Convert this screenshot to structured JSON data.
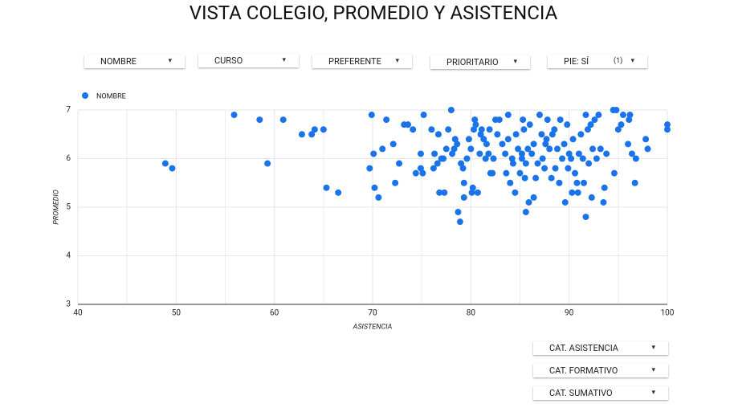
{
  "header": {
    "title": "VISTA COLEGIO, PROMEDIO Y ASISTENCIA"
  },
  "filters": [
    "NOMBRE",
    "CURSO",
    "PREFERENTE",
    "PRIORITARIO",
    {
      "label": "PIE: SÍ",
      "count": "(1)"
    }
  ],
  "bottom_filters": [
    "CAT. ASISTENCIA",
    "CAT. FORMATIVO",
    "CAT. SUMATIVO"
  ],
  "chart_data": {
    "type": "scatter",
    "x_label": "ASISTENCIA",
    "y_label": "PROMEDIO",
    "xlim": [
      40,
      100
    ],
    "xticks": [
      40,
      50,
      60,
      70,
      80,
      90,
      100
    ],
    "ylim": [
      3,
      7
    ],
    "yticks": [
      3,
      4,
      5,
      6,
      7
    ],
    "grid": true,
    "legend": "top-left",
    "x": [
      48.9,
      49.6,
      55.9,
      58.5,
      59.3,
      60.9,
      62.8,
      63.8,
      64.1,
      65.0,
      65.3,
      66.5,
      69.7,
      69.9,
      70.1,
      70.2,
      70.6,
      71.0,
      71.4,
      72.1,
      72.3,
      72.7,
      73.2,
      73.6,
      74.1,
      74.4,
      74.9,
      74.9,
      75.1,
      75.2,
      76.0,
      76.2,
      76.3,
      76.6,
      76.7,
      76.8,
      77.0,
      77.2,
      77.3,
      77.5,
      77.7,
      78.0,
      78.1,
      78.3,
      78.4,
      78.6,
      78.7,
      78.9,
      79.0,
      79.2,
      79.3,
      79.3,
      79.6,
      79.8,
      80.0,
      80.1,
      80.2,
      80.3,
      80.4,
      80.5,
      80.7,
      80.9,
      81.0,
      81.1,
      81.3,
      81.5,
      81.6,
      81.8,
      81.9,
      82.0,
      82.2,
      82.3,
      82.5,
      82.7,
      82.9,
      83.2,
      83.5,
      83.6,
      83.8,
      83.8,
      84.0,
      84.2,
      84.3,
      84.5,
      84.6,
      84.8,
      85.0,
      85.2,
      85.2,
      85.3,
      85.4,
      85.5,
      85.6,
      85.6,
      85.8,
      85.9,
      86.0,
      86.2,
      86.4,
      86.4,
      86.6,
      86.8,
      87.0,
      87.2,
      87.3,
      87.5,
      87.6,
      87.7,
      87.8,
      88.0,
      88.2,
      88.3,
      88.5,
      88.6,
      88.8,
      89.0,
      89.1,
      89.3,
      89.5,
      89.6,
      89.8,
      89.9,
      90.0,
      90.2,
      90.3,
      90.4,
      90.6,
      90.8,
      90.9,
      91.0,
      91.2,
      91.4,
      91.5,
      91.7,
      91.7,
      91.9,
      92.0,
      92.2,
      92.3,
      92.4,
      92.6,
      92.8,
      93.0,
      93.2,
      93.5,
      93.6,
      93.8,
      94.5,
      94.6,
      94.8,
      95.0,
      95.3,
      95.5,
      96.0,
      96.1,
      96.2,
      96.4,
      96.7,
      96.8,
      97.8,
      98.0,
      100,
      100
    ],
    "series": [
      {
        "name": "NOMBRE",
        "color": "#1a73e8",
        "values": [
          5.9,
          5.8,
          6.9,
          6.8,
          5.9,
          6.8,
          6.5,
          6.5,
          6.6,
          6.6,
          5.4,
          5.3,
          5.8,
          6.9,
          6.1,
          5.4,
          5.2,
          6.2,
          6.8,
          6.3,
          5.5,
          5.9,
          6.7,
          6.7,
          6.6,
          5.7,
          6.1,
          5.8,
          5.7,
          6.9,
          6.6,
          5.8,
          6.1,
          5.9,
          6.5,
          5.3,
          6.0,
          6.0,
          5.3,
          6.2,
          6.6,
          7.0,
          6.1,
          6.2,
          6.4,
          6.3,
          4.9,
          4.7,
          5.9,
          5.8,
          5.2,
          5.5,
          6.0,
          6.4,
          6.2,
          5.3,
          5.4,
          6.6,
          6.8,
          6.7,
          5.3,
          6.1,
          6.5,
          6.6,
          6.4,
          6.0,
          6.3,
          6.1,
          6.6,
          5.7,
          5.7,
          6.0,
          6.8,
          6.5,
          6.8,
          6.3,
          6.1,
          5.7,
          6.4,
          6.9,
          5.5,
          6.0,
          5.9,
          5.3,
          6.5,
          6.2,
          5.7,
          6.1,
          6.0,
          6.8,
          6.6,
          5.6,
          4.9,
          5.9,
          6.2,
          5.1,
          6.7,
          6.1,
          5.2,
          6.3,
          5.6,
          5.9,
          6.9,
          6.5,
          6.0,
          5.8,
          6.3,
          6.4,
          6.8,
          6.2,
          5.6,
          6.5,
          6.6,
          5.8,
          6.2,
          5.5,
          6.8,
          6.0,
          6.3,
          5.1,
          6.7,
          5.8,
          6.1,
          6.0,
          5.3,
          6.4,
          5.7,
          5.5,
          5.3,
          6.1,
          6.5,
          6.0,
          5.5,
          6.9,
          4.8,
          6.6,
          5.9,
          6.7,
          5.2,
          6.2,
          6.8,
          6.0,
          6.9,
          6.2,
          5.1,
          5.4,
          6.1,
          7.0,
          5.7,
          7.0,
          6.6,
          6.7,
          6.9,
          6.3,
          6.8,
          6.9,
          6.1,
          5.5,
          6.0,
          6.4,
          6.2,
          6.6,
          6.7
        ]
      }
    ]
  }
}
